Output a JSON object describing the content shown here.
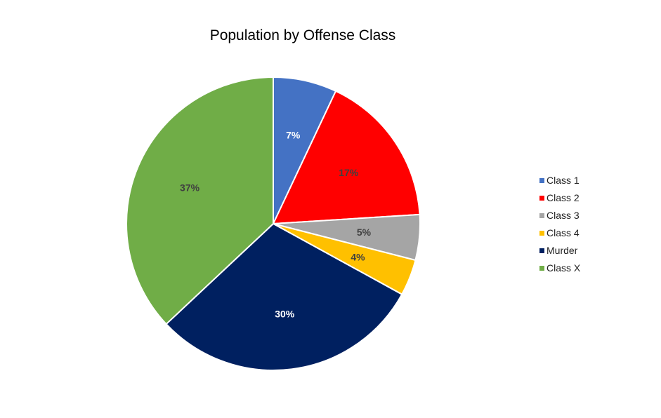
{
  "chart_data": {
    "type": "pie",
    "title": "Population by Offense Class",
    "categories": [
      "Class 1",
      "Class 2",
      "Class 3",
      "Class 4",
      "Murder",
      "Class X"
    ],
    "values": [
      7,
      17,
      5,
      4,
      30,
      37
    ],
    "labels": [
      "7%",
      "17%",
      "5%",
      "4%",
      "30%",
      "37%"
    ],
    "colors": [
      "#4472C4",
      "#FF0000",
      "#A5A5A5",
      "#FFC000",
      "#002060",
      "#70AD47"
    ],
    "label_colors": [
      "#FFFFFF",
      "#404040",
      "#404040",
      "#404040",
      "#FFFFFF",
      "#404040"
    ],
    "start_angle_deg": 0,
    "direction": "clockwise",
    "legend_position": "right"
  }
}
